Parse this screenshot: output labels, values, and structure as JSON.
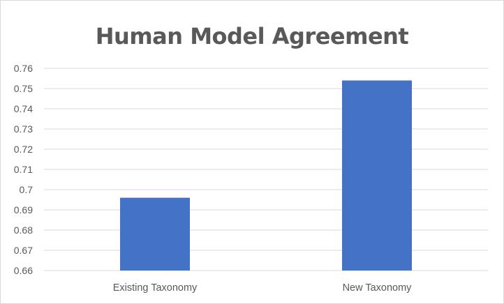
{
  "chart_data": {
    "type": "bar",
    "title": "Human Model Agreement",
    "categories": [
      "Existing Taxonomy",
      "New Taxonomy"
    ],
    "values": [
      0.696,
      0.754
    ],
    "ylim": [
      0.66,
      0.76
    ],
    "yticks": [
      "0.66",
      "0.67",
      "0.68",
      "0.69",
      "0.7",
      "0.71",
      "0.72",
      "0.73",
      "0.74",
      "0.75",
      "0.76"
    ],
    "xlabel": "",
    "ylabel": "",
    "grid": true,
    "legend": "none",
    "bar_color": "#4472C4",
    "grid_color": "#d9d9d9"
  }
}
